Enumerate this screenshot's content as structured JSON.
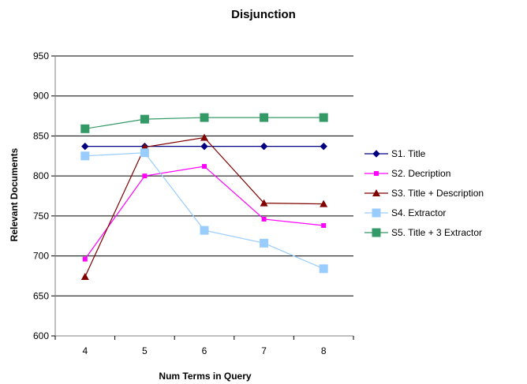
{
  "chart_data": {
    "type": "line",
    "title": "Disjunction",
    "xlabel": "Num Terms in Query",
    "ylabel": "Relevant Documents",
    "x": [
      4,
      5,
      6,
      7,
      8
    ],
    "ylim": [
      600,
      950
    ],
    "yticks": [
      600,
      650,
      700,
      750,
      800,
      850,
      900,
      950
    ],
    "grid": true,
    "legend_position": "right",
    "series": [
      {
        "name": "S1. Title",
        "color": "#000080",
        "marker": "diamond",
        "values": [
          837,
          837,
          837,
          837,
          837
        ]
      },
      {
        "name": "S2. Decription",
        "color": "#ff00ff",
        "marker": "square",
        "values": [
          696,
          800,
          812,
          746,
          738
        ]
      },
      {
        "name": "S3. Title + Description",
        "color": "#800000",
        "marker": "triangle",
        "values": [
          674,
          836,
          848,
          766,
          765
        ]
      },
      {
        "name": "S4. Extractor",
        "color": "#99ccff",
        "marker": "square-large",
        "values": [
          825,
          829,
          732,
          716,
          684
        ]
      },
      {
        "name": "S5. Title + 3 Extractor",
        "color": "#339966",
        "marker": "square-large",
        "values": [
          859,
          871,
          873,
          873,
          873
        ]
      }
    ]
  }
}
